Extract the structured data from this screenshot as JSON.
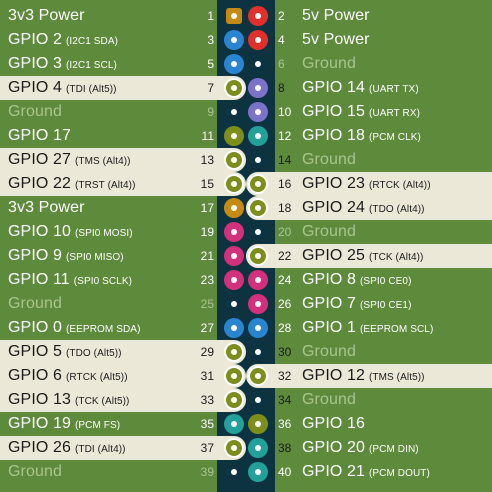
{
  "colors": {
    "background": "#5e8a3c",
    "header": "#0d3340",
    "highlight": "#ece8d8",
    "power3v3": "#c48a14",
    "power5v": "#e1302c",
    "gpio": "#7d8f1a",
    "i2c": "#2a85d0",
    "uart": "#7b73c8",
    "pcm": "#23a09a",
    "spi": "#d4317c",
    "eeprom": "#2a85d0",
    "ground": "#0d3340"
  },
  "rows": [
    {
      "left": {
        "name": "3v3 Power",
        "sub": "",
        "num": "1",
        "type": "power3v3",
        "hl": false,
        "shape": "square"
      },
      "right": {
        "name": "5v Power",
        "sub": "",
        "num": "2",
        "type": "power5v",
        "hl": false
      }
    },
    {
      "left": {
        "name": "GPIO 2",
        "sub": "(I2C1 SDA)",
        "num": "3",
        "type": "i2c",
        "hl": false
      },
      "right": {
        "name": "5v Power",
        "sub": "",
        "num": "4",
        "type": "power5v",
        "hl": false
      }
    },
    {
      "left": {
        "name": "GPIO 3",
        "sub": "(I2C1 SCL)",
        "num": "5",
        "type": "i2c",
        "hl": false
      },
      "right": {
        "name": "Ground",
        "sub": "",
        "num": "6",
        "type": "ground",
        "hl": false
      }
    },
    {
      "left": {
        "name": "GPIO 4",
        "sub": "(TDI (Alt5))",
        "num": "7",
        "type": "gpio",
        "hl": true
      },
      "right": {
        "name": "GPIO 14",
        "sub": "(UART TX)",
        "num": "8",
        "type": "uart",
        "hl": false
      }
    },
    {
      "left": {
        "name": "Ground",
        "sub": "",
        "num": "9",
        "type": "ground",
        "hl": false
      },
      "right": {
        "name": "GPIO 15",
        "sub": "(UART RX)",
        "num": "10",
        "type": "uart",
        "hl": false
      }
    },
    {
      "left": {
        "name": "GPIO 17",
        "sub": "",
        "num": "11",
        "type": "gpio",
        "hl": false
      },
      "right": {
        "name": "GPIO 18",
        "sub": "(PCM CLK)",
        "num": "12",
        "type": "pcm",
        "hl": false
      }
    },
    {
      "left": {
        "name": "GPIO 27",
        "sub": "(TMS (Alt4))",
        "num": "13",
        "type": "gpio",
        "hl": true
      },
      "right": {
        "name": "Ground",
        "sub": "",
        "num": "14",
        "type": "ground",
        "hl": false
      }
    },
    {
      "left": {
        "name": "GPIO 22",
        "sub": "(TRST (Alt4))",
        "num": "15",
        "type": "gpio",
        "hl": true
      },
      "right": {
        "name": "GPIO 23",
        "sub": "(RTCK (Alt4))",
        "num": "16",
        "type": "gpio",
        "hl": true
      }
    },
    {
      "left": {
        "name": "3v3 Power",
        "sub": "",
        "num": "17",
        "type": "power3v3",
        "hl": false
      },
      "right": {
        "name": "GPIO 24",
        "sub": "(TDO (Alt4))",
        "num": "18",
        "type": "gpio",
        "hl": true
      }
    },
    {
      "left": {
        "name": "GPIO 10",
        "sub": "(SPI0 MOSI)",
        "num": "19",
        "type": "spi",
        "hl": false
      },
      "right": {
        "name": "Ground",
        "sub": "",
        "num": "20",
        "type": "ground",
        "hl": false
      }
    },
    {
      "left": {
        "name": "GPIO 9",
        "sub": "(SPI0 MISO)",
        "num": "21",
        "type": "spi",
        "hl": false
      },
      "right": {
        "name": "GPIO 25",
        "sub": "(TCK (Alt4))",
        "num": "22",
        "type": "gpio",
        "hl": true
      }
    },
    {
      "left": {
        "name": "GPIO 11",
        "sub": "(SPI0 SCLK)",
        "num": "23",
        "type": "spi",
        "hl": false
      },
      "right": {
        "name": "GPIO 8",
        "sub": "(SPI0 CE0)",
        "num": "24",
        "type": "spi",
        "hl": false
      }
    },
    {
      "left": {
        "name": "Ground",
        "sub": "",
        "num": "25",
        "type": "ground",
        "hl": false
      },
      "right": {
        "name": "GPIO 7",
        "sub": "(SPI0 CE1)",
        "num": "26",
        "type": "spi",
        "hl": false
      }
    },
    {
      "left": {
        "name": "GPIO 0",
        "sub": "(EEPROM SDA)",
        "num": "27",
        "type": "eeprom",
        "hl": false
      },
      "right": {
        "name": "GPIO 1",
        "sub": "(EEPROM SCL)",
        "num": "28",
        "type": "eeprom",
        "hl": false
      }
    },
    {
      "left": {
        "name": "GPIO 5",
        "sub": "(TDO (Alt5))",
        "num": "29",
        "type": "gpio",
        "hl": true
      },
      "right": {
        "name": "Ground",
        "sub": "",
        "num": "30",
        "type": "ground",
        "hl": false
      }
    },
    {
      "left": {
        "name": "GPIO 6",
        "sub": "(RTCK (Alt5))",
        "num": "31",
        "type": "gpio",
        "hl": true
      },
      "right": {
        "name": "GPIO 12",
        "sub": "(TMS (Alt5))",
        "num": "32",
        "type": "gpio",
        "hl": true
      }
    },
    {
      "left": {
        "name": "GPIO 13",
        "sub": "(TCK (Alt5))",
        "num": "33",
        "type": "gpio",
        "hl": true
      },
      "right": {
        "name": "Ground",
        "sub": "",
        "num": "34",
        "type": "ground",
        "hl": false
      }
    },
    {
      "left": {
        "name": "GPIO 19",
        "sub": "(PCM FS)",
        "num": "35",
        "type": "pcm",
        "hl": false
      },
      "right": {
        "name": "GPIO 16",
        "sub": "",
        "num": "36",
        "type": "gpio",
        "hl": false
      }
    },
    {
      "left": {
        "name": "GPIO 26",
        "sub": "(TDI (Alt4))",
        "num": "37",
        "type": "gpio",
        "hl": true
      },
      "right": {
        "name": "GPIO 20",
        "sub": "(PCM DIN)",
        "num": "38",
        "type": "pcm",
        "hl": false
      }
    },
    {
      "left": {
        "name": "Ground",
        "sub": "",
        "num": "39",
        "type": "ground",
        "hl": false
      },
      "right": {
        "name": "GPIO 21",
        "sub": "(PCM DOUT)",
        "num": "40",
        "type": "pcm",
        "hl": false
      }
    }
  ]
}
